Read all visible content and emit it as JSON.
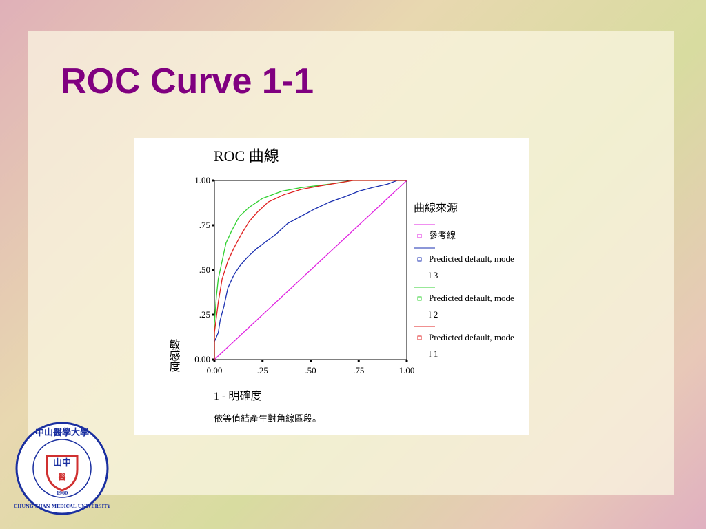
{
  "slide": {
    "title": "ROC Curve 1-1",
    "logo": {
      "name_cn": "中山醫學大學",
      "name_en": "CHUNG SHAN MEDICAL UNIVERSITY",
      "year": "1960",
      "emblem": "山中",
      "emblem_sub": "醫"
    }
  },
  "chart_data": {
    "type": "line",
    "title": "ROC 曲線",
    "x_label": "1 - 明確度",
    "y_label": "敏感度",
    "legend_title": "曲線來源",
    "note": "依等值結產生對角線區段。",
    "xlim": [
      0,
      1
    ],
    "ylim": [
      0,
      1
    ],
    "xticks": [
      {
        "value": 0,
        "label": "0.00"
      },
      {
        "value": 0.25,
        "label": ".25"
      },
      {
        "value": 0.5,
        "label": ".50"
      },
      {
        "value": 0.75,
        "label": ".75"
      },
      {
        "value": 1,
        "label": "1.00"
      }
    ],
    "yticks": [
      {
        "value": 0,
        "label": "0.00"
      },
      {
        "value": 0.25,
        "label": ".25"
      },
      {
        "value": 0.5,
        "label": ".50"
      },
      {
        "value": 0.75,
        "label": ".75"
      },
      {
        "value": 1,
        "label": "1.00"
      }
    ],
    "legend": "right",
    "series": [
      {
        "name": "參考線",
        "color": "#e020e0",
        "x": [
          0,
          1
        ],
        "values": [
          0,
          1
        ]
      },
      {
        "name": "Predicted default, model 3",
        "color": "#1a2fb0",
        "x": [
          0,
          0,
          0.02,
          0.03,
          0.05,
          0.07,
          0.1,
          0.13,
          0.17,
          0.22,
          0.27,
          0.32,
          0.38,
          0.45,
          0.52,
          0.6,
          0.68,
          0.75,
          0.82,
          0.9,
          0.95,
          1
        ],
        "values": [
          0,
          0.1,
          0.15,
          0.22,
          0.3,
          0.4,
          0.47,
          0.52,
          0.57,
          0.62,
          0.66,
          0.7,
          0.76,
          0.8,
          0.84,
          0.88,
          0.91,
          0.94,
          0.96,
          0.98,
          1,
          1
        ]
      },
      {
        "name": "Predicted default, model 2",
        "color": "#30d030",
        "x": [
          0,
          0,
          0.01,
          0.02,
          0.04,
          0.06,
          0.09,
          0.13,
          0.18,
          0.25,
          0.35,
          0.45,
          0.6,
          0.72,
          1
        ],
        "values": [
          0,
          0.2,
          0.35,
          0.45,
          0.55,
          0.65,
          0.72,
          0.8,
          0.85,
          0.9,
          0.94,
          0.96,
          0.98,
          1,
          1
        ]
      },
      {
        "name": "Predicted default, model 1",
        "color": "#e02020",
        "x": [
          0,
          0,
          0.02,
          0.04,
          0.07,
          0.1,
          0.14,
          0.18,
          0.22,
          0.28,
          0.36,
          0.45,
          0.55,
          0.72,
          1
        ],
        "values": [
          0,
          0.15,
          0.32,
          0.45,
          0.55,
          0.62,
          0.7,
          0.77,
          0.82,
          0.88,
          0.92,
          0.95,
          0.97,
          1,
          1
        ]
      }
    ]
  }
}
